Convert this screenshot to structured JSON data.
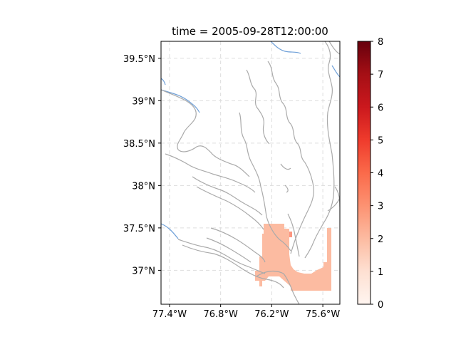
{
  "title": "time = 2005-09-28T12:00:00",
  "map": {
    "lon_range": [
      -77.5,
      -75.4
    ],
    "lat_range": [
      36.6,
      39.7
    ],
    "lon_ticks": [
      {
        "value": -77.4,
        "label": "77.4°W"
      },
      {
        "value": -76.8,
        "label": "76.8°W"
      },
      {
        "value": -76.2,
        "label": "76.2°W"
      },
      {
        "value": -75.6,
        "label": "75.6°W"
      }
    ],
    "lat_ticks": [
      {
        "value": 37.0,
        "label": "37°N"
      },
      {
        "value": 37.5,
        "label": "37.5°N"
      },
      {
        "value": 38.0,
        "label": "38°N"
      },
      {
        "value": 38.5,
        "label": "38.5°N"
      },
      {
        "value": 39.0,
        "label": "39°N"
      },
      {
        "value": 39.5,
        "label": "39.5°N"
      }
    ],
    "gridlines": true,
    "coastline_color": "#aaaaaa",
    "river_color": "#6fa0d8",
    "data_color": "#fcbba1",
    "data_value_approx": 2
  },
  "colorbar": {
    "min": 0,
    "max": 8,
    "colormap": "Reds",
    "ticks": [
      {
        "value": 0,
        "label": "0"
      },
      {
        "value": 1,
        "label": "1"
      },
      {
        "value": 2,
        "label": "2"
      },
      {
        "value": 3,
        "label": "3"
      },
      {
        "value": 4,
        "label": "4"
      },
      {
        "value": 5,
        "label": "5"
      },
      {
        "value": 6,
        "label": "6"
      },
      {
        "value": 7,
        "label": "7"
      },
      {
        "value": 8,
        "label": "8"
      }
    ]
  }
}
